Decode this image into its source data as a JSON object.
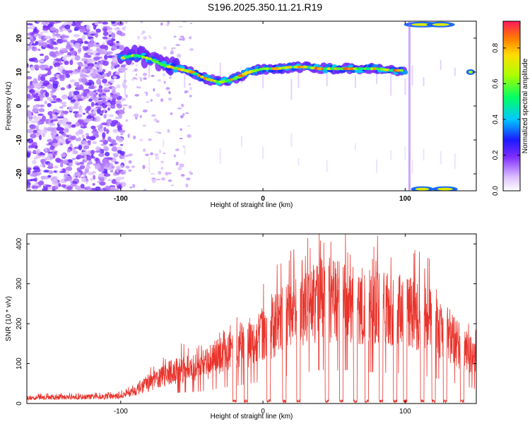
{
  "title": "S196.2025.350.11.21.R19",
  "chart_data": [
    {
      "type": "heatmap",
      "name": "spectrogram",
      "xlabel": "Height of straight line (km)",
      "ylabel": "Frequency (Hz)",
      "xlim": [
        -166,
        150
      ],
      "ylim": [
        -25,
        25
      ],
      "xticks": [
        -100,
        0,
        100
      ],
      "yticks": [
        -20,
        -10,
        0,
        10,
        20
      ],
      "ridge": {
        "x": [
          -100,
          -90,
          -80,
          -70,
          -60,
          -50,
          -40,
          -30,
          -20,
          -10,
          0,
          10,
          20,
          30,
          40,
          50,
          60,
          70,
          80,
          90,
          100
        ],
        "freq": [
          14,
          15,
          14,
          12,
          11,
          10,
          8,
          7,
          8,
          10,
          11,
          11,
          11.5,
          11.5,
          11,
          11,
          11,
          11,
          11,
          10.5,
          10.5
        ]
      },
      "colorbar": {
        "label": "Normalized spectral amplitude",
        "ticks": [
          "0.0",
          "0.2",
          "0.4",
          "0.6",
          "0.8"
        ],
        "range": [
          0,
          0.95
        ]
      }
    },
    {
      "type": "line",
      "name": "snr",
      "xlabel": "Height of straight line (km)",
      "ylabel": "SNR (10 * v/v)",
      "xlim": [
        -166,
        150
      ],
      "ylim": [
        0,
        425
      ],
      "xticks": [
        -100,
        0,
        100
      ],
      "yticks": [
        0,
        100,
        200,
        300,
        400
      ],
      "color": "#e8342c",
      "envelope": {
        "x": [
          -166,
          -140,
          -120,
          -100,
          -90,
          -80,
          -70,
          -60,
          -50,
          -40,
          -30,
          -20,
          -10,
          0,
          10,
          20,
          30,
          40,
          50,
          60,
          70,
          80,
          90,
          100,
          110,
          120,
          130,
          140,
          150
        ],
        "snr": [
          15,
          17,
          18,
          20,
          35,
          55,
          75,
          90,
          95,
          105,
          130,
          145,
          165,
          185,
          215,
          235,
          260,
          280,
          275,
          280,
          265,
          260,
          255,
          250,
          240,
          215,
          190,
          150,
          120
        ]
      },
      "dips_x": [
        -20,
        -12,
        4,
        15,
        25,
        45,
        55,
        65,
        73,
        83,
        93,
        100,
        112,
        120,
        128,
        140
      ]
    }
  ]
}
